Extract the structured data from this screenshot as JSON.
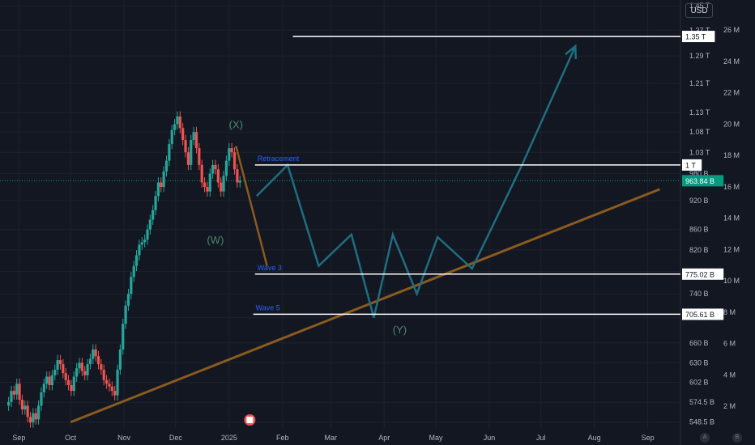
{
  "toolbar": {
    "currency": "USD",
    "auto_label": "A",
    "log_label": "B"
  },
  "colors": {
    "background": "#131722",
    "grid": "#1e222d",
    "up": "#26a69a",
    "down": "#ef5350",
    "trendline": "#8b5a1e",
    "projection": "#1f6e80",
    "label_blue": "#2962ff",
    "wave_label": "#4a8a6e",
    "last_price": "#089981",
    "text": "#b2b5be"
  },
  "chart_data": {
    "type": "candlestick",
    "title": "",
    "x_ticks": [
      "Sep",
      "Oct",
      "Nov",
      "Dec",
      "2025",
      "Feb",
      "Mar",
      "Apr",
      "May",
      "Jun",
      "Jul",
      "Aug",
      "Sep"
    ],
    "price_axis_ticks": [
      "1.45 T",
      "1.37 T",
      "1.29 T",
      "1.21 T",
      "1.13 T",
      "1.08 T",
      "1.03 T",
      "980 B",
      "920 B",
      "860 B",
      "820 B",
      "780 B",
      "740 B",
      "700 B",
      "660 B",
      "630 B",
      "602 B",
      "574.5 B",
      "548.5 B"
    ],
    "volume_axis_ticks": [
      "26 M",
      "24 M",
      "22 M",
      "20 M",
      "18 M",
      "16 M",
      "14 M",
      "12 M",
      "10 M",
      "8 M",
      "6 M",
      "4 M",
      "2 M"
    ],
    "price_range": [
      540,
      1470
    ],
    "price_unit": "B",
    "last_price": {
      "label": "963.84 B",
      "value": 963.84
    },
    "horizontal_levels": [
      {
        "label": "1.35 T",
        "value": 1350,
        "from": "2025-02-07",
        "annotation": ""
      },
      {
        "label": "1 T",
        "value": 1000,
        "from": "2025-01-16",
        "annotation": "Retracement"
      },
      {
        "label": "775.02 B",
        "value": 775.02,
        "from": "2025-01-16",
        "annotation": "Wave 3"
      },
      {
        "label": "705.61 B",
        "value": 705.61,
        "from": "2025-01-15",
        "annotation": "Wave 5"
      }
    ],
    "wave_labels": [
      {
        "text": "(X)",
        "date": "2025-01-05",
        "price": 1090
      },
      {
        "text": "(W)",
        "date": "2024-12-24",
        "price": 832
      },
      {
        "text": "(Y)",
        "date": "2025-04-10",
        "price": 675
      }
    ],
    "trendline": [
      [
        "2024-10-01",
        548.5
      ],
      [
        "2025-09-08",
        945
      ]
    ],
    "orange_path": [
      [
        "2025-01-05",
        1045
      ],
      [
        "2025-01-23",
        790
      ]
    ],
    "projection_path": [
      [
        "2025-01-17",
        930
      ],
      [
        "2025-02-04",
        1000
      ],
      [
        "2025-02-22",
        790
      ],
      [
        "2025-03-13",
        850
      ],
      [
        "2025-03-26",
        700
      ],
      [
        "2025-04-06",
        850
      ],
      [
        "2025-04-20",
        740
      ],
      [
        "2025-05-02",
        845
      ],
      [
        "2025-05-22",
        785
      ],
      [
        "2025-06-20",
        1000
      ],
      [
        "2025-07-21",
        1320
      ]
    ],
    "candles_close": [
      575,
      590,
      585,
      600,
      578,
      565,
      570,
      555,
      548,
      560,
      552,
      570,
      588,
      600,
      610,
      598,
      612,
      620,
      634,
      628,
      615,
      605,
      598,
      590,
      610,
      622,
      630,
      618,
      612,
      628,
      636,
      650,
      640,
      628,
      620,
      605,
      600,
      596,
      590,
      584,
      620,
      650,
      690,
      720,
      740,
      770,
      790,
      810,
      830,
      835,
      840,
      860,
      880,
      900,
      930,
      960,
      950,
      985,
      1010,
      1050,
      1085,
      1100,
      1120,
      1090,
      1060,
      1030,
      1000,
      1060,
      1080,
      1040,
      1000,
      960,
      950,
      940,
      980,
      1000,
      990,
      960,
      940,
      975,
      1010,
      1040,
      1030,
      990,
      960,
      963.84
    ],
    "candles_start": "2024-08-26",
    "candles_interval_days": 1.58
  }
}
